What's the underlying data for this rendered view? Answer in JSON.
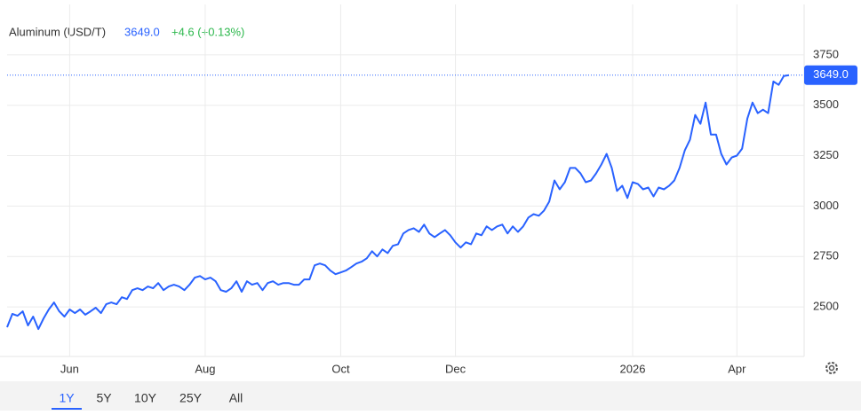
{
  "chart_data": {
    "type": "line",
    "title": "Aluminum (USD/T)",
    "price": "3649.0",
    "change": "+4.6 (+0.13%)",
    "last_label": "3649.0",
    "series": [
      {
        "name": "Aluminum (USD/T)",
        "color": "#2962ff",
        "values": [
          2399,
          2465,
          2456,
          2478,
          2408,
          2452,
          2390,
          2443,
          2487,
          2522,
          2478,
          2452,
          2487,
          2469,
          2487,
          2461,
          2478,
          2496,
          2469,
          2513,
          2522,
          2513,
          2548,
          2539,
          2583,
          2592,
          2583,
          2601,
          2592,
          2618,
          2583,
          2601,
          2610,
          2601,
          2583,
          2610,
          2645,
          2653,
          2636,
          2645,
          2627,
          2583,
          2575,
          2592,
          2627,
          2575,
          2627,
          2610,
          2618,
          2583,
          2618,
          2627,
          2610,
          2618,
          2618,
          2610,
          2610,
          2636,
          2636,
          2706,
          2715,
          2706,
          2680,
          2662,
          2671,
          2680,
          2697,
          2715,
          2724,
          2741,
          2776,
          2750,
          2785,
          2767,
          2803,
          2811,
          2864,
          2881,
          2890,
          2872,
          2908,
          2864,
          2846,
          2864,
          2881,
          2855,
          2820,
          2794,
          2820,
          2811,
          2864,
          2855,
          2899,
          2881,
          2899,
          2908,
          2864,
          2899,
          2872,
          2899,
          2943,
          2960,
          2952,
          2978,
          3022,
          3127,
          3083,
          3118,
          3189,
          3189,
          3162,
          3118,
          3127,
          3162,
          3206,
          3259,
          3189,
          3075,
          3101,
          3040,
          3118,
          3110,
          3083,
          3092,
          3048,
          3092,
          3083,
          3101,
          3127,
          3189,
          3276,
          3329,
          3452,
          3408,
          3513,
          3355,
          3355,
          3259,
          3206,
          3241,
          3250,
          3285,
          3434,
          3513,
          3461,
          3478,
          3461,
          3618,
          3601,
          3645,
          3649
        ]
      }
    ],
    "xlim": [
      0,
      152.9
    ],
    "xticks": [
      {
        "value": 12,
        "label": "Jun"
      },
      {
        "value": 38,
        "label": "Aug"
      },
      {
        "value": 64,
        "label": "Oct"
      },
      {
        "value": 86,
        "label": "Dec"
      },
      {
        "value": 120,
        "label": "2026"
      },
      {
        "value": 140,
        "label": "Apr"
      }
    ],
    "ylim": [
      2254,
      4000
    ],
    "yticks": [
      2500,
      2750,
      3000,
      3250,
      3500,
      3750
    ],
    "grid": true,
    "ranges": [
      "1Y",
      "5Y",
      "10Y",
      "25Y",
      "All"
    ],
    "selected_range": 0
  }
}
